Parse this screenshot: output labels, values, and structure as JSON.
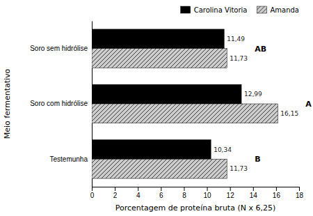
{
  "chart_data": {
    "type": "bar",
    "orientation": "horizontal",
    "categories": [
      "Testemunha",
      "Soro com hidrólise",
      "Soro sem hidrólise"
    ],
    "series": [
      {
        "name": "Carolina Vitoria",
        "color": "#000000",
        "values": [
          10.34,
          12.99,
          11.49
        ],
        "value_labels": [
          "10,34",
          "12,99",
          "11,49"
        ]
      },
      {
        "name": "Amanda",
        "color": "#cccccc",
        "values": [
          11.73,
          16.15,
          11.73
        ],
        "value_labels": [
          "11,73",
          "16,15",
          "11,73"
        ]
      }
    ],
    "annotations": [
      "B",
      "A",
      "AB"
    ],
    "xlabel": "Porcentagem de proteína bruta (N x 6,25)",
    "ylabel": "Meio fermentativo",
    "xlim": [
      0,
      18
    ],
    "xticks": [
      0,
      2,
      4,
      6,
      8,
      10,
      12,
      14,
      16,
      18
    ],
    "data_labels": true,
    "legend": "upper right",
    "grid": false
  }
}
